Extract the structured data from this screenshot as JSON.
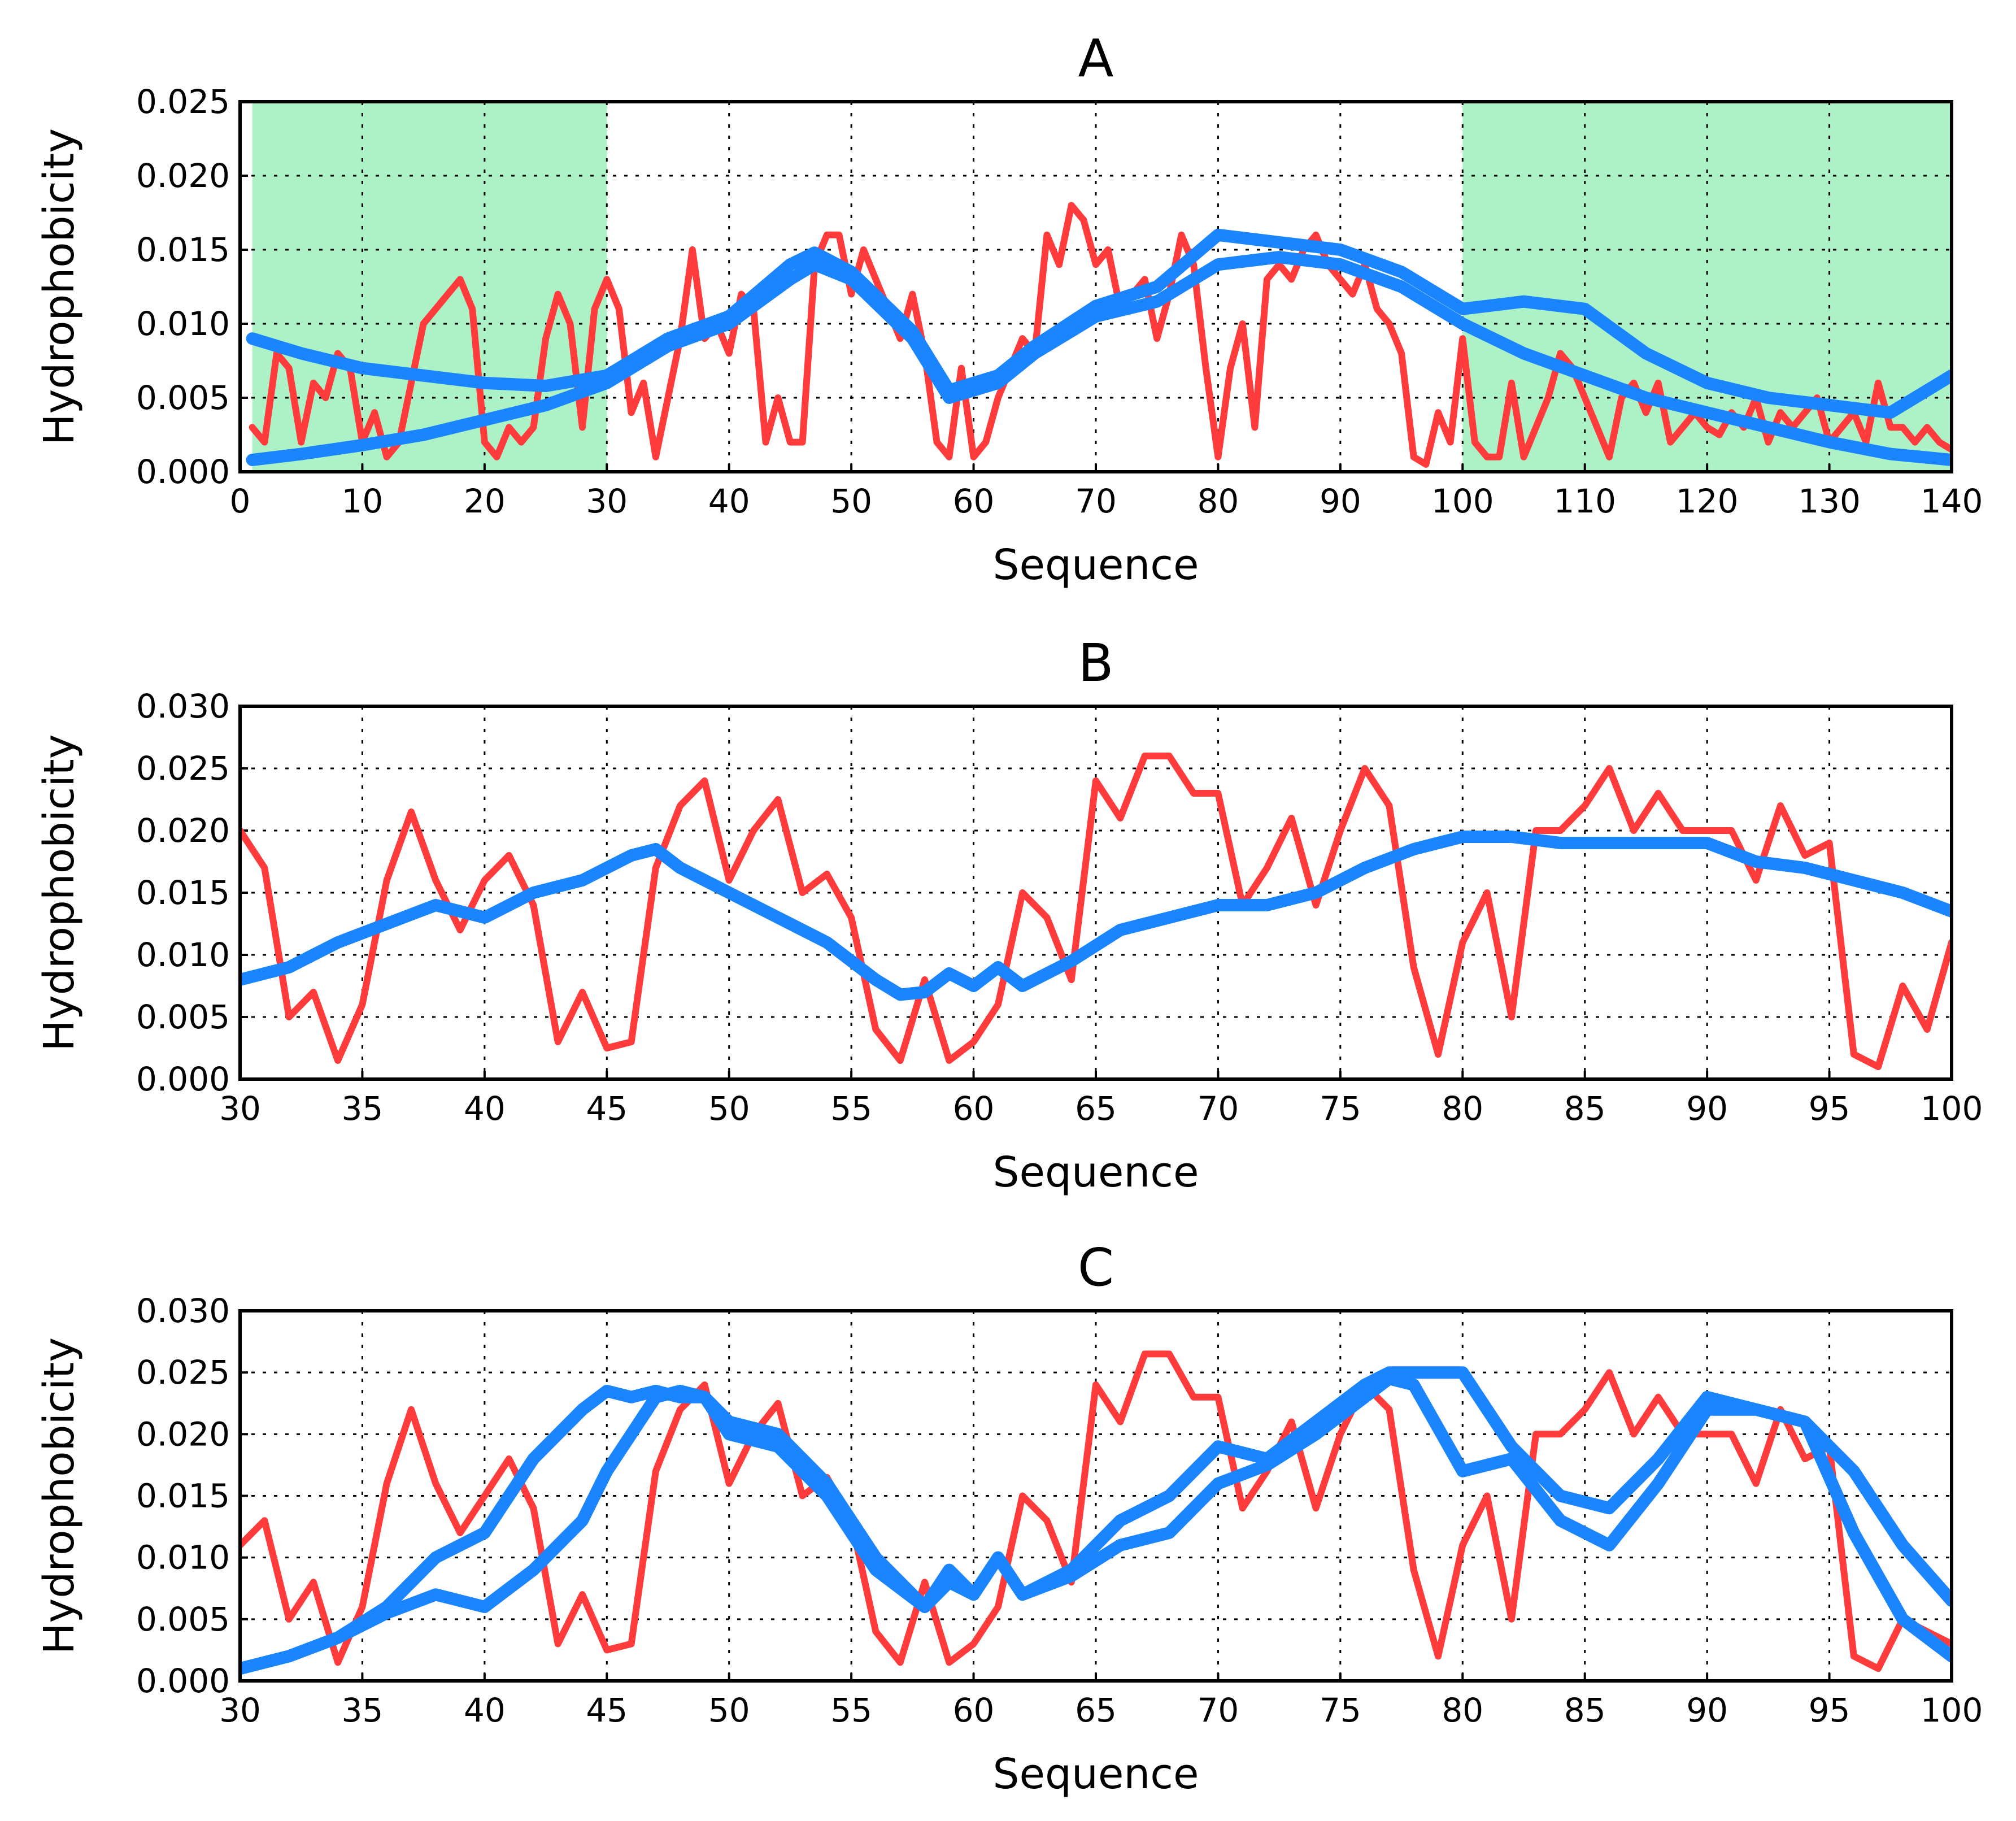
{
  "figure": {
    "colors": {
      "red": "#ff3b3b",
      "blue": "#1a85ff",
      "shade": "#adf2c6",
      "background": "#ffffff"
    }
  },
  "chart_data": [
    {
      "type": "line",
      "panel": "A",
      "title": "A",
      "xlabel": "Sequence",
      "ylabel": "Hydrophobicity",
      "xlim": [
        0,
        140
      ],
      "ylim": [
        0,
        0.025
      ],
      "grid": true,
      "xticks": [
        "0",
        "10",
        "20",
        "30",
        "40",
        "50",
        "60",
        "70",
        "80",
        "90",
        "100",
        "110",
        "120",
        "130",
        "140"
      ],
      "yticks": [
        "0.000",
        "0.005",
        "0.010",
        "0.015",
        "0.020",
        "0.025"
      ],
      "shaded_regions": [
        [
          1,
          30
        ],
        [
          100,
          140
        ]
      ],
      "series": [
        {
          "name": "red",
          "color": "#ff3b3b",
          "x": [
            1,
            2,
            3,
            4,
            5,
            6,
            7,
            8,
            9,
            10,
            11,
            12,
            13,
            14,
            15,
            16,
            17,
            18,
            19,
            20,
            21,
            22,
            23,
            24,
            25,
            26,
            27,
            28,
            29,
            30,
            31,
            32,
            33,
            34,
            35,
            36,
            37,
            38,
            39,
            40,
            41,
            42,
            43,
            44,
            45,
            46,
            47,
            48,
            49,
            50,
            51,
            52,
            53,
            54,
            55,
            56,
            57,
            58,
            59,
            60,
            61,
            62,
            63,
            64,
            65,
            66,
            67,
            68,
            69,
            70,
            71,
            72,
            73,
            74,
            75,
            76,
            77,
            78,
            79,
            80,
            81,
            82,
            83,
            84,
            85,
            86,
            87,
            88,
            89,
            90,
            91,
            92,
            93,
            94,
            95,
            96,
            97,
            98,
            99,
            100,
            101,
            102,
            103,
            104,
            105,
            106,
            107,
            108,
            109,
            110,
            111,
            112,
            113,
            114,
            115,
            116,
            117,
            118,
            119,
            120,
            121,
            122,
            123,
            124,
            125,
            126,
            127,
            128,
            129,
            130,
            131,
            132,
            133,
            134,
            135,
            136,
            137,
            138,
            139,
            140
          ],
          "values": [
            0.003,
            0.002,
            0.008,
            0.007,
            0.002,
            0.006,
            0.005,
            0.008,
            0.007,
            0.002,
            0.004,
            0.001,
            0.002,
            0.006,
            0.01,
            0.011,
            0.012,
            0.013,
            0.011,
            0.002,
            0.001,
            0.003,
            0.002,
            0.003,
            0.009,
            0.012,
            0.01,
            0.003,
            0.011,
            0.013,
            0.011,
            0.004,
            0.006,
            0.001,
            0.005,
            0.009,
            0.015,
            0.009,
            0.01,
            0.008,
            0.012,
            0.011,
            0.002,
            0.005,
            0.002,
            0.002,
            0.014,
            0.016,
            0.016,
            0.012,
            0.015,
            0.013,
            0.011,
            0.009,
            0.012,
            0.008,
            0.002,
            0.001,
            0.007,
            0.001,
            0.002,
            0.005,
            0.007,
            0.009,
            0.008,
            0.016,
            0.014,
            0.018,
            0.017,
            0.014,
            0.015,
            0.011,
            0.012,
            0.013,
            0.009,
            0.012,
            0.016,
            0.014,
            0.007,
            0.001,
            0.007,
            0.01,
            0.003,
            0.013,
            0.014,
            0.013,
            0.015,
            0.016,
            0.014,
            0.013,
            0.012,
            0.014,
            0.011,
            0.01,
            0.008,
            0.001,
            0.0005,
            0.004,
            0.002,
            0.009,
            0.002,
            0.001,
            0.001,
            0.006,
            0.001,
            0.003,
            0.005,
            0.008,
            0.007,
            0.005,
            0.003,
            0.001,
            0.005,
            0.006,
            0.004,
            0.006,
            0.002,
            0.003,
            0.004,
            0.003,
            0.0025,
            0.004,
            0.003,
            0.005,
            0.002,
            0.004,
            0.003,
            0.004,
            0.005,
            0.002,
            0.003,
            0.004,
            0.002,
            0.006,
            0.003,
            0.003,
            0.002,
            0.003,
            0.002,
            0.0015
          ]
        },
        {
          "name": "blue",
          "color": "#1a85ff",
          "x": [
            1,
            5,
            10,
            15,
            20,
            25,
            30,
            35,
            40,
            45,
            47,
            50,
            55,
            58,
            60,
            62,
            65,
            70,
            75,
            80,
            85,
            90,
            95,
            100,
            105,
            110,
            115,
            120,
            125,
            130,
            135,
            140
          ],
          "values": [
            0.0008,
            0.0012,
            0.0018,
            0.0025,
            0.0035,
            0.0045,
            0.006,
            0.0085,
            0.01,
            0.013,
            0.014,
            0.013,
            0.009,
            0.005,
            0.0055,
            0.006,
            0.008,
            0.0105,
            0.0115,
            0.014,
            0.0145,
            0.014,
            0.0125,
            0.01,
            0.008,
            0.0065,
            0.005,
            0.004,
            0.003,
            0.002,
            0.0012,
            0.0008
          ]
        },
        {
          "name": "blue-upper",
          "color": "#1a85ff",
          "x": [
            1,
            5,
            10,
            15,
            20,
            25,
            30,
            35,
            40,
            45,
            47,
            50,
            55,
            58,
            60,
            62,
            65,
            70,
            75,
            80,
            85,
            90,
            95,
            100,
            105,
            110,
            115,
            120,
            125,
            130,
            135,
            140
          ],
          "values": [
            0.009,
            0.008,
            0.007,
            0.0065,
            0.006,
            0.0058,
            0.0065,
            0.009,
            0.0105,
            0.014,
            0.0148,
            0.0135,
            0.0095,
            0.0055,
            0.006,
            0.0065,
            0.0085,
            0.0112,
            0.0125,
            0.016,
            0.0155,
            0.015,
            0.0135,
            0.011,
            0.0115,
            0.011,
            0.008,
            0.006,
            0.005,
            0.0045,
            0.004,
            0.0065
          ]
        }
      ]
    },
    {
      "type": "line",
      "panel": "B",
      "title": "B",
      "xlabel": "Sequence",
      "ylabel": "Hydrophobicity",
      "xlim": [
        30,
        100
      ],
      "ylim": [
        0,
        0.03
      ],
      "grid": true,
      "xticks": [
        "30",
        "35",
        "40",
        "45",
        "50",
        "55",
        "60",
        "65",
        "70",
        "75",
        "80",
        "85",
        "90",
        "95",
        "100"
      ],
      "yticks": [
        "0.000",
        "0.005",
        "0.010",
        "0.015",
        "0.020",
        "0.025",
        "0.030"
      ],
      "series": [
        {
          "name": "red",
          "color": "#ff3b3b",
          "x": [
            30,
            31,
            32,
            33,
            34,
            35,
            36,
            37,
            38,
            39,
            40,
            41,
            42,
            43,
            44,
            45,
            46,
            47,
            48,
            49,
            50,
            51,
            52,
            53,
            54,
            55,
            56,
            57,
            58,
            59,
            60,
            61,
            62,
            63,
            64,
            65,
            66,
            67,
            68,
            69,
            70,
            71,
            72,
            73,
            74,
            75,
            76,
            77,
            78,
            79,
            80,
            81,
            82,
            83,
            84,
            85,
            86,
            87,
            88,
            89,
            90,
            91,
            92,
            93,
            94,
            95,
            96,
            97,
            98,
            99,
            100
          ],
          "values": [
            0.02,
            0.017,
            0.005,
            0.007,
            0.0015,
            0.006,
            0.016,
            0.0215,
            0.016,
            0.012,
            0.016,
            0.018,
            0.014,
            0.003,
            0.007,
            0.0025,
            0.003,
            0.017,
            0.022,
            0.024,
            0.016,
            0.02,
            0.0225,
            0.015,
            0.0165,
            0.013,
            0.004,
            0.0015,
            0.008,
            0.0015,
            0.003,
            0.006,
            0.015,
            0.013,
            0.008,
            0.024,
            0.021,
            0.026,
            0.026,
            0.023,
            0.023,
            0.014,
            0.017,
            0.021,
            0.014,
            0.02,
            0.025,
            0.022,
            0.009,
            0.002,
            0.011,
            0.015,
            0.005,
            0.02,
            0.02,
            0.022,
            0.025,
            0.02,
            0.023,
            0.02,
            0.02,
            0.02,
            0.016,
            0.022,
            0.018,
            0.019,
            0.002,
            0.001,
            0.0075,
            0.004,
            0.011
          ]
        },
        {
          "name": "blue",
          "color": "#1a85ff",
          "x": [
            30,
            32,
            34,
            36,
            38,
            40,
            42,
            44,
            46,
            47,
            48,
            50,
            52,
            54,
            56,
            57,
            58,
            59,
            60,
            61,
            62,
            64,
            66,
            68,
            70,
            72,
            74,
            76,
            78,
            80,
            82,
            84,
            86,
            88,
            90,
            92,
            94,
            96,
            98,
            100
          ],
          "values": [
            0.008,
            0.009,
            0.011,
            0.0125,
            0.014,
            0.013,
            0.015,
            0.016,
            0.018,
            0.0185,
            0.017,
            0.015,
            0.013,
            0.011,
            0.008,
            0.0068,
            0.007,
            0.0085,
            0.0075,
            0.009,
            0.0075,
            0.0095,
            0.012,
            0.013,
            0.014,
            0.014,
            0.015,
            0.017,
            0.0185,
            0.0195,
            0.0195,
            0.019,
            0.019,
            0.019,
            0.019,
            0.0175,
            0.017,
            0.016,
            0.015,
            0.0135
          ]
        }
      ]
    },
    {
      "type": "line",
      "panel": "C",
      "title": "C",
      "xlabel": "Sequence",
      "ylabel": "Hydrophobicity",
      "xlim": [
        30,
        100
      ],
      "ylim": [
        0,
        0.03
      ],
      "grid": true,
      "xticks": [
        "30",
        "35",
        "40",
        "45",
        "50",
        "55",
        "60",
        "65",
        "70",
        "75",
        "80",
        "85",
        "90",
        "95",
        "100"
      ],
      "yticks": [
        "0.000",
        "0.005",
        "0.010",
        "0.015",
        "0.020",
        "0.025",
        "0.030"
      ],
      "series": [
        {
          "name": "red",
          "color": "#ff3b3b",
          "x": [
            30,
            31,
            32,
            33,
            34,
            35,
            36,
            37,
            38,
            39,
            40,
            41,
            42,
            43,
            44,
            45,
            46,
            47,
            48,
            49,
            50,
            51,
            52,
            53,
            54,
            55,
            56,
            57,
            58,
            59,
            60,
            61,
            62,
            63,
            64,
            65,
            66,
            67,
            68,
            69,
            70,
            71,
            72,
            73,
            74,
            75,
            76,
            77,
            78,
            79,
            80,
            81,
            82,
            83,
            84,
            85,
            86,
            87,
            88,
            89,
            90,
            91,
            92,
            93,
            94,
            95,
            96,
            97,
            98,
            99,
            100
          ],
          "values": [
            0.011,
            0.013,
            0.005,
            0.008,
            0.0015,
            0.006,
            0.016,
            0.022,
            0.016,
            0.012,
            0.015,
            0.018,
            0.014,
            0.003,
            0.007,
            0.0025,
            0.003,
            0.017,
            0.022,
            0.024,
            0.016,
            0.02,
            0.0225,
            0.015,
            0.0165,
            0.013,
            0.004,
            0.0015,
            0.008,
            0.0015,
            0.003,
            0.006,
            0.015,
            0.013,
            0.008,
            0.024,
            0.021,
            0.0265,
            0.0265,
            0.023,
            0.023,
            0.014,
            0.017,
            0.021,
            0.014,
            0.02,
            0.024,
            0.022,
            0.009,
            0.002,
            0.011,
            0.015,
            0.005,
            0.02,
            0.02,
            0.022,
            0.025,
            0.02,
            0.023,
            0.02,
            0.02,
            0.02,
            0.016,
            0.022,
            0.018,
            0.019,
            0.002,
            0.001,
            0.005,
            0.004,
            0.003
          ]
        },
        {
          "name": "blue-early",
          "color": "#1a85ff",
          "x": [
            30,
            32,
            34,
            36,
            38,
            40,
            42,
            44,
            45,
            46,
            47,
            48,
            49,
            50,
            52,
            54,
            56,
            58,
            59,
            60,
            61,
            62,
            64,
            66,
            68,
            70,
            72,
            74,
            76,
            77,
            78,
            80,
            82,
            84,
            86,
            88,
            90,
            92,
            94,
            96,
            98,
            100
          ],
          "values": [
            0.001,
            0.002,
            0.0035,
            0.006,
            0.01,
            0.012,
            0.018,
            0.022,
            0.0235,
            0.023,
            0.0235,
            0.023,
            0.023,
            0.021,
            0.02,
            0.016,
            0.01,
            0.006,
            0.008,
            0.007,
            0.01,
            0.007,
            0.009,
            0.013,
            0.015,
            0.019,
            0.018,
            0.021,
            0.024,
            0.025,
            0.025,
            0.025,
            0.019,
            0.015,
            0.014,
            0.018,
            0.023,
            0.022,
            0.021,
            0.017,
            0.011,
            0.0065
          ]
        },
        {
          "name": "blue-late",
          "color": "#1a85ff",
          "x": [
            30,
            32,
            34,
            36,
            38,
            40,
            42,
            44,
            45,
            46,
            47,
            48,
            49,
            50,
            52,
            54,
            56,
            58,
            59,
            60,
            61,
            62,
            64,
            66,
            68,
            70,
            72,
            74,
            76,
            77,
            78,
            80,
            82,
            84,
            86,
            88,
            90,
            92,
            94,
            96,
            98,
            100
          ],
          "values": [
            0.001,
            0.002,
            0.0035,
            0.0055,
            0.007,
            0.006,
            0.009,
            0.013,
            0.017,
            0.02,
            0.023,
            0.0235,
            0.023,
            0.02,
            0.019,
            0.015,
            0.009,
            0.006,
            0.009,
            0.007,
            0.01,
            0.007,
            0.0085,
            0.011,
            0.012,
            0.016,
            0.0175,
            0.02,
            0.023,
            0.0245,
            0.024,
            0.017,
            0.018,
            0.013,
            0.011,
            0.016,
            0.022,
            0.022,
            0.021,
            0.012,
            0.005,
            0.002
          ]
        }
      ]
    }
  ]
}
